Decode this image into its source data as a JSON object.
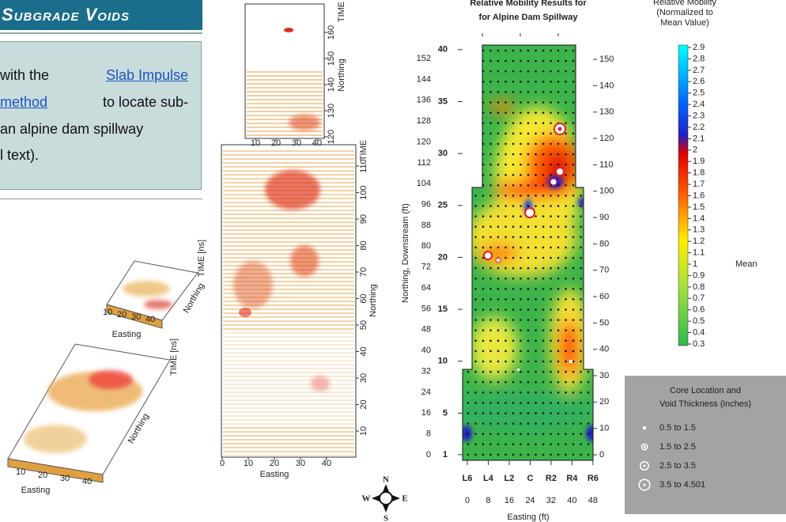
{
  "header": {
    "title": "Subgrade Voids"
  },
  "intro": {
    "lines": [
      [
        {
          "text": "with the"
        },
        {
          "text": "Slab Impulse",
          "link": true
        }
      ],
      [
        {
          "text": "method",
          "link": true
        },
        {
          "text": "to locate sub-"
        }
      ],
      [
        {
          "text": "an alpine dam spillway"
        }
      ],
      [
        {
          "text": "l text)."
        }
      ]
    ]
  },
  "iso_small": {
    "xlabel": "Easting",
    "ylabel": "Northing",
    "zlabel": "TIME [ns]",
    "xticks": [
      10,
      20,
      30,
      40
    ]
  },
  "iso_large": {
    "xlabel": "Easting",
    "ylabel": "Northing",
    "zlabel": "TIME [ns]",
    "xticks": [
      10,
      20,
      30,
      40
    ]
  },
  "gpr_top": {
    "time_label": "TIME",
    "ylabel": "Northing",
    "xticks": [
      10,
      20,
      30,
      40
    ],
    "yticks": [
      120,
      130,
      140,
      150,
      160
    ]
  },
  "gpr_main": {
    "time_label": "TIME",
    "ylabel": "Northing",
    "xlabel": "Easting",
    "xticks": [
      0,
      10,
      20,
      30,
      40
    ],
    "yticks": [
      10,
      20,
      30,
      40,
      50,
      60,
      70,
      80,
      90,
      100,
      110
    ]
  },
  "compass": {
    "n": "N",
    "s": "S",
    "e": "E",
    "w": "W"
  },
  "mobility": {
    "title": [
      "Relative Mobility Results for",
      "for Alpine Dam Spillway"
    ],
    "ylabel": "Northing, Downstream (ft)",
    "xlabel": "Easting (ft)",
    "yticks_ft": [
      0,
      8,
      16,
      24,
      32,
      40,
      48,
      56,
      64,
      72,
      80,
      88,
      96,
      104,
      112,
      120,
      128,
      136,
      144,
      152
    ],
    "yticks_station": [
      1,
      5,
      10,
      15,
      20,
      25,
      30,
      35,
      40
    ],
    "y2ticks": [
      0,
      10,
      20,
      30,
      40,
      50,
      60,
      70,
      80,
      90,
      100,
      110,
      120,
      130,
      140,
      150
    ],
    "xticks": [
      0,
      8,
      16,
      24,
      32,
      40,
      48
    ],
    "xcategories": [
      "L6",
      "L4",
      "L2",
      "C",
      "R2",
      "R4",
      "R6"
    ]
  },
  "colorbar": {
    "title": [
      "Relative Mobility",
      "(Normalized to",
      "Mean Value)"
    ],
    "ticks": [
      2.9,
      2.8,
      2.7,
      2.6,
      2.5,
      2.4,
      2.3,
      2.2,
      2.1,
      2,
      1.9,
      1.8,
      1.7,
      1.6,
      1.5,
      1.4,
      1.3,
      1.2,
      1.1,
      1,
      0.9,
      0.8,
      0.7,
      0.6,
      0.5,
      0.4,
      0.3
    ],
    "mean_label": "Mean"
  },
  "legend": {
    "title": [
      "Core Location and",
      "Void Thickness (inches)"
    ],
    "items": [
      "0.5 to 1.5",
      "1.5 to 2.5",
      "2.5 to 3.5",
      "3.5 to 4.501"
    ]
  }
}
